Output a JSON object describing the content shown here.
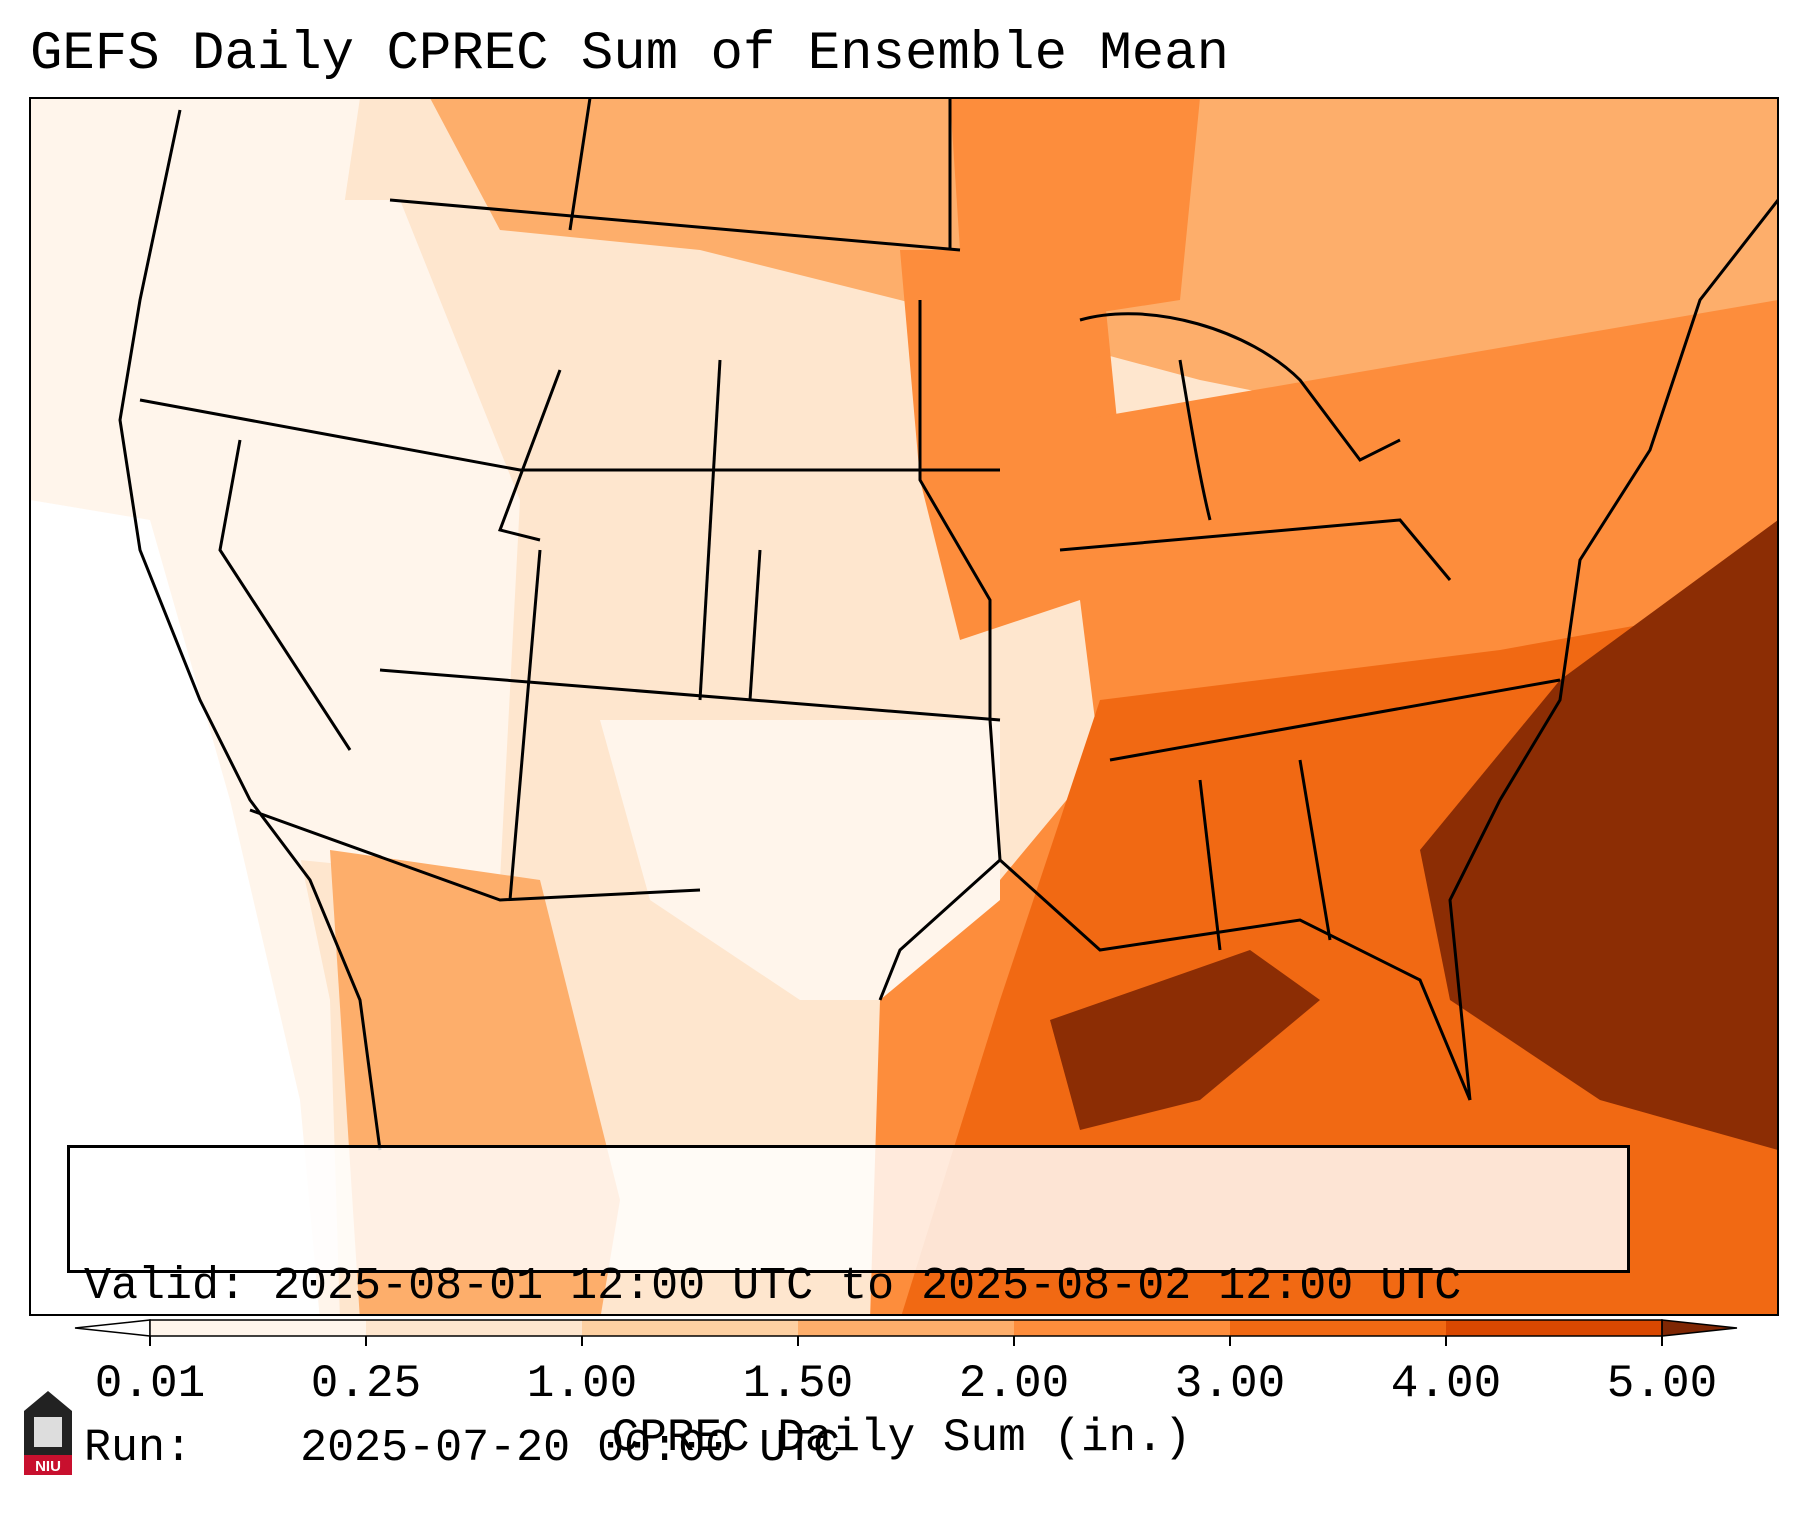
{
  "title": "GEFS Daily CPREC Sum of Ensemble Mean",
  "info": {
    "valid_label": "Valid:",
    "valid_value": "2025-08-01 12:00 UTC to 2025-08-02 12:00 UTC",
    "run_label": "Run:",
    "run_value": "2025-07-20 00:00 UTC"
  },
  "colorbar": {
    "label": "CPREC Daily Sum (in.)",
    "ticks": [
      "0.01",
      "0.25",
      "1.00",
      "1.50",
      "2.00",
      "3.00",
      "4.00",
      "5.00"
    ],
    "colors": [
      "#fff5eb",
      "#fee6ce",
      "#fdd0a2",
      "#fdae6b",
      "#fd8d3c",
      "#f16913",
      "#d94801",
      "#8c2d04"
    ],
    "under_color": "#ffffff",
    "over_color": "#7f2704"
  },
  "logo": {
    "text": "NIU",
    "icon": "university-tower-icon",
    "color": "#c8102e"
  },
  "map": {
    "region": "Continental United States",
    "field": "CPREC Daily Sum",
    "units": "in."
  }
}
